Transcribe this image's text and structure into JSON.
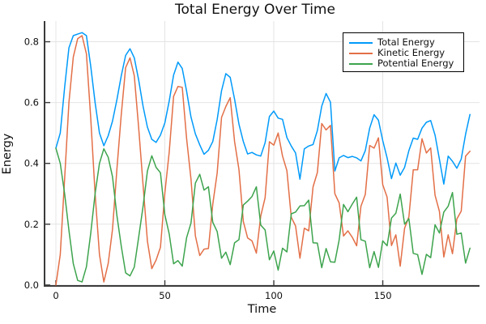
{
  "title": "Total Energy Over Time",
  "chart_data": {
    "type": "line",
    "title": "Total Energy Over Time",
    "xlabel": "Time",
    "ylabel": "Energy",
    "xlim": [
      -5.2,
      194.4
    ],
    "ylim": [
      -0.003,
      0.868
    ],
    "xticks": [
      0,
      50,
      100,
      150
    ],
    "xtick_labels": [
      "0",
      "50",
      "100",
      "150"
    ],
    "yticks": [
      0.0,
      0.2,
      0.4,
      0.6,
      0.8
    ],
    "ytick_labels": [
      "0.0",
      "0.2",
      "0.4",
      "0.6",
      "0.8"
    ],
    "grid": true,
    "legend_position": "top-right",
    "style": {
      "axis_color": "#3a3a3a",
      "grid_color": "#e4e4e4",
      "text_color": "#111111",
      "legend_border": "#000000",
      "background": "#ffffff"
    },
    "x": [
      0,
      2,
      4,
      6,
      8,
      10,
      12,
      14,
      16,
      18,
      20,
      22,
      24,
      26,
      28,
      30,
      32,
      34,
      36,
      38,
      40,
      42,
      44,
      46,
      48,
      50,
      52,
      54,
      56,
      58,
      60,
      62,
      64,
      66,
      68,
      70,
      72,
      74,
      76,
      78,
      80,
      82,
      84,
      86,
      88,
      90,
      92,
      94,
      96,
      98,
      100,
      102,
      104,
      106,
      108,
      110,
      112,
      114,
      116,
      118,
      120,
      122,
      124,
      126,
      128,
      130,
      132,
      134,
      136,
      138,
      140,
      142,
      144,
      146,
      148,
      150,
      152,
      154,
      156,
      158,
      160,
      162,
      164,
      166,
      168,
      170,
      172,
      174,
      176,
      178,
      180,
      182,
      184,
      186,
      188,
      190
    ],
    "series": [
      {
        "name": "Total Energy",
        "color": "#009AFA",
        "values": [
          0.45,
          0.5,
          0.65,
          0.78,
          0.82,
          0.825,
          0.83,
          0.82,
          0.72,
          0.6,
          0.5,
          0.458,
          0.491,
          0.539,
          0.609,
          0.688,
          0.755,
          0.777,
          0.747,
          0.674,
          0.588,
          0.519,
          0.479,
          0.469,
          0.493,
          0.533,
          0.605,
          0.69,
          0.733,
          0.712,
          0.637,
          0.552,
          0.497,
          0.461,
          0.43,
          0.443,
          0.472,
          0.544,
          0.639,
          0.695,
          0.683,
          0.611,
          0.529,
          0.472,
          0.431,
          0.436,
          0.428,
          0.424,
          0.468,
          0.554,
          0.572,
          0.549,
          0.545,
          0.485,
          0.457,
          0.434,
          0.348,
          0.448,
          0.457,
          0.462,
          0.508,
          0.588,
          0.63,
          0.601,
          0.375,
          0.418,
          0.426,
          0.419,
          0.423,
          0.418,
          0.408,
          0.442,
          0.516,
          0.56,
          0.542,
          0.475,
          0.418,
          0.35,
          0.401,
          0.361,
          0.387,
          0.442,
          0.483,
          0.479,
          0.516,
          0.535,
          0.541,
          0.493,
          0.413,
          0.332,
          0.424,
          0.407,
          0.384,
          0.414,
          0.496,
          0.561
        ]
      },
      {
        "name": "Kinetic Energy",
        "color": "#E36F47",
        "values": [
          0.0,
          0.1,
          0.35,
          0.6,
          0.75,
          0.81,
          0.82,
          0.76,
          0.55,
          0.3,
          0.1,
          0.01,
          0.071,
          0.183,
          0.38,
          0.56,
          0.715,
          0.747,
          0.688,
          0.517,
          0.33,
          0.144,
          0.054,
          0.082,
          0.124,
          0.302,
          0.437,
          0.62,
          0.653,
          0.65,
          0.481,
          0.348,
          0.162,
          0.097,
          0.118,
          0.12,
          0.266,
          0.368,
          0.551,
          0.587,
          0.616,
          0.472,
          0.38,
          0.209,
          0.155,
          0.145,
          0.105,
          0.227,
          0.287,
          0.471,
          0.46,
          0.5,
          0.424,
          0.376,
          0.223,
          0.194,
          0.088,
          0.187,
          0.178,
          0.323,
          0.37,
          0.531,
          0.51,
          0.525,
          0.3,
          0.27,
          0.161,
          0.178,
          0.157,
          0.129,
          0.259,
          0.298,
          0.459,
          0.45,
          0.484,
          0.33,
          0.289,
          0.13,
          0.165,
          0.062,
          0.187,
          0.224,
          0.379,
          0.379,
          0.481,
          0.434,
          0.451,
          0.295,
          0.242,
          0.092,
          0.165,
          0.103,
          0.217,
          0.243,
          0.424,
          0.44
        ]
      },
      {
        "name": "Potential Energy",
        "color": "#3DA44D",
        "values": [
          0.45,
          0.4,
          0.3,
          0.18,
          0.07,
          0.015,
          0.01,
          0.06,
          0.17,
          0.3,
          0.4,
          0.448,
          0.42,
          0.356,
          0.229,
          0.128,
          0.04,
          0.03,
          0.059,
          0.157,
          0.258,
          0.375,
          0.425,
          0.387,
          0.369,
          0.231,
          0.168,
          0.07,
          0.08,
          0.062,
          0.156,
          0.204,
          0.335,
          0.364,
          0.312,
          0.323,
          0.206,
          0.176,
          0.088,
          0.108,
          0.067,
          0.139,
          0.149,
          0.263,
          0.276,
          0.291,
          0.323,
          0.197,
          0.181,
          0.083,
          0.112,
          0.049,
          0.121,
          0.109,
          0.234,
          0.24,
          0.26,
          0.261,
          0.279,
          0.139,
          0.138,
          0.057,
          0.12,
          0.076,
          0.075,
          0.148,
          0.265,
          0.241,
          0.266,
          0.289,
          0.149,
          0.144,
          0.057,
          0.11,
          0.058,
          0.145,
          0.129,
          0.22,
          0.236,
          0.299,
          0.2,
          0.218,
          0.104,
          0.1,
          0.035,
          0.101,
          0.09,
          0.198,
          0.171,
          0.24,
          0.259,
          0.304,
          0.167,
          0.171,
          0.072,
          0.121
        ]
      }
    ]
  }
}
